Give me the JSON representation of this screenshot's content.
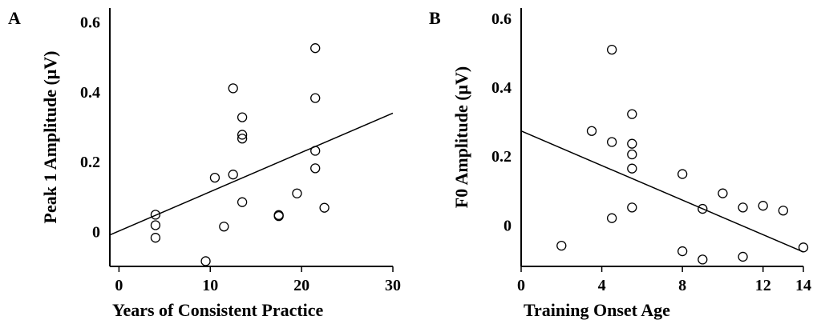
{
  "chart_data": [
    {
      "panel_label": "A",
      "type": "scatter",
      "xlabel": "Years of Consistent Practice",
      "ylabel": "Peak 1 Amplitude (μV)",
      "xlim": [
        -1,
        30
      ],
      "ylim": [
        -0.1,
        0.64
      ],
      "xticks": [
        0,
        10,
        20,
        30
      ],
      "yticks": [
        0,
        0.2,
        0.4,
        0.6
      ],
      "xtick_labels": [
        "0",
        "10",
        "20",
        "30"
      ],
      "ytick_labels": [
        "0",
        "0.2",
        "0.4",
        "0.6"
      ],
      "grid": false,
      "trendline": {
        "x": [
          -1,
          30
        ],
        "y": [
          -0.01,
          0.339
        ]
      },
      "points": [
        {
          "x": 4,
          "y": 0.048
        },
        {
          "x": 4,
          "y": 0.018
        },
        {
          "x": 4,
          "y": -0.018
        },
        {
          "x": 9.5,
          "y": -0.085
        },
        {
          "x": 10.5,
          "y": 0.154
        },
        {
          "x": 11.5,
          "y": 0.014
        },
        {
          "x": 12.5,
          "y": 0.41
        },
        {
          "x": 12.5,
          "y": 0.163
        },
        {
          "x": 13.5,
          "y": 0.327
        },
        {
          "x": 13.5,
          "y": 0.277
        },
        {
          "x": 13.5,
          "y": 0.266
        },
        {
          "x": 13.5,
          "y": 0.084
        },
        {
          "x": 17.5,
          "y": 0.047
        },
        {
          "x": 17.5,
          "y": 0.044
        },
        {
          "x": 19.5,
          "y": 0.109
        },
        {
          "x": 21.5,
          "y": 0.525
        },
        {
          "x": 21.5,
          "y": 0.382
        },
        {
          "x": 21.5,
          "y": 0.231
        },
        {
          "x": 21.5,
          "y": 0.181
        },
        {
          "x": 22.5,
          "y": 0.068
        }
      ]
    },
    {
      "panel_label": "B",
      "type": "scatter",
      "xlabel": "Training Onset Age",
      "ylabel": "F0 Amplitude (μV)",
      "xlim": [
        0,
        14
      ],
      "ylim": [
        -0.12,
        0.63
      ],
      "xticks": [
        0,
        4,
        8,
        12,
        14
      ],
      "yticks": [
        0,
        0.2,
        0.4,
        0.6
      ],
      "xtick_labels": [
        "0",
        "4",
        "8",
        "12",
        "14"
      ],
      "ytick_labels": [
        "0",
        "0.2",
        "0.4",
        "0.6"
      ],
      "grid": false,
      "trendline": {
        "x": [
          0,
          14
        ],
        "y": [
          0.273,
          -0.078
        ]
      },
      "points": [
        {
          "x": 2,
          "y": -0.06
        },
        {
          "x": 3.5,
          "y": 0.273
        },
        {
          "x": 4.5,
          "y": 0.509
        },
        {
          "x": 4.5,
          "y": 0.241
        },
        {
          "x": 4.5,
          "y": 0.02
        },
        {
          "x": 5.5,
          "y": 0.322
        },
        {
          "x": 5.5,
          "y": 0.236
        },
        {
          "x": 5.5,
          "y": 0.205
        },
        {
          "x": 5.5,
          "y": 0.164
        },
        {
          "x": 5.5,
          "y": 0.051
        },
        {
          "x": 8,
          "y": 0.148
        },
        {
          "x": 8,
          "y": -0.076
        },
        {
          "x": 9,
          "y": 0.047
        },
        {
          "x": 9,
          "y": -0.1
        },
        {
          "x": 10,
          "y": 0.092
        },
        {
          "x": 11,
          "y": 0.051
        },
        {
          "x": 11,
          "y": -0.092
        },
        {
          "x": 12,
          "y": 0.056
        },
        {
          "x": 13,
          "y": 0.042
        },
        {
          "x": 14,
          "y": -0.065
        }
      ]
    }
  ]
}
